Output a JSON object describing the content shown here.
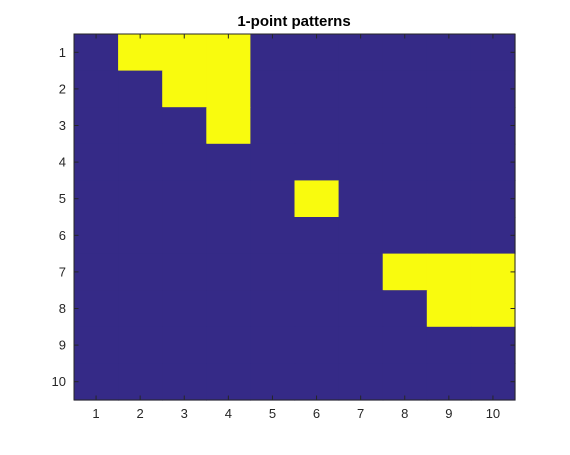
{
  "chart_data": {
    "type": "heatmap",
    "title": "1-point patterns",
    "xlabel": "",
    "ylabel": "",
    "x_ticks": [
      "1",
      "2",
      "3",
      "4",
      "5",
      "6",
      "7",
      "8",
      "9",
      "10"
    ],
    "y_ticks": [
      "1",
      "2",
      "3",
      "4",
      "5",
      "6",
      "7",
      "8",
      "9",
      "10"
    ],
    "xlim": [
      0.5,
      10.5
    ],
    "ylim": [
      0.5,
      10.5
    ],
    "y_direction": "reverse",
    "grid": false,
    "legend": "none",
    "colors": {
      "low": "#352a87",
      "high": "#f9fb0e",
      "axis": "#262626"
    },
    "matrix": [
      [
        0,
        1,
        1,
        1,
        0,
        0,
        0,
        0,
        0,
        0
      ],
      [
        0,
        0,
        1,
        1,
        0,
        0,
        0,
        0,
        0,
        0
      ],
      [
        0,
        0,
        0,
        1,
        0,
        0,
        0,
        0,
        0,
        0
      ],
      [
        0,
        0,
        0,
        0,
        0,
        0,
        0,
        0,
        0,
        0
      ],
      [
        0,
        0,
        0,
        0,
        0,
        1,
        0,
        0,
        0,
        0
      ],
      [
        0,
        0,
        0,
        0,
        0,
        0,
        0,
        0,
        0,
        0
      ],
      [
        0,
        0,
        0,
        0,
        0,
        0,
        0,
        1,
        1,
        1
      ],
      [
        0,
        0,
        0,
        0,
        0,
        0,
        0,
        0,
        1,
        1
      ],
      [
        0,
        0,
        0,
        0,
        0,
        0,
        0,
        0,
        0,
        0
      ],
      [
        0,
        0,
        0,
        0,
        0,
        0,
        0,
        0,
        0,
        0
      ]
    ]
  }
}
